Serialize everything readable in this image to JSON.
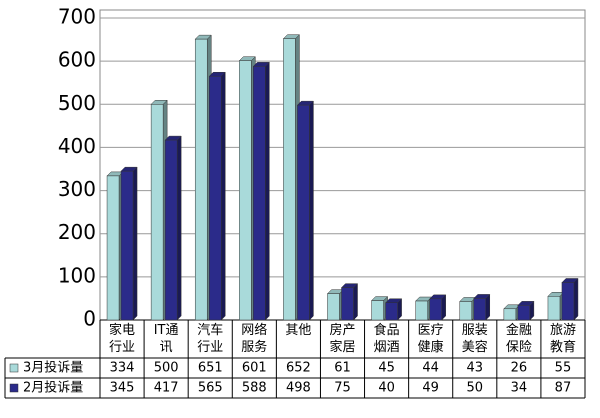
{
  "chart_data": {
    "type": "bar",
    "categories": [
      "家电\n行业",
      "IT通\n讯",
      "汽车\n行业",
      "网络\n服务",
      "其他",
      "房产\n家居",
      "食品\n烟酒",
      "医疗\n健康",
      "服装\n美容",
      "金融\n保险",
      "旅游\n教育"
    ],
    "series": [
      {
        "name": "3月投诉量",
        "color": "#a9dada",
        "values": [
          334,
          500,
          651,
          601,
          652,
          61,
          45,
          44,
          43,
          26,
          55
        ]
      },
      {
        "name": "2月投诉量",
        "color": "#2b2b8a",
        "values": [
          345,
          417,
          565,
          588,
          498,
          75,
          40,
          49,
          50,
          34,
          87
        ]
      }
    ],
    "ylim": [
      0,
      700
    ],
    "yticks": [
      0,
      100,
      200,
      300,
      400,
      500,
      600,
      700
    ],
    "grid": true
  }
}
